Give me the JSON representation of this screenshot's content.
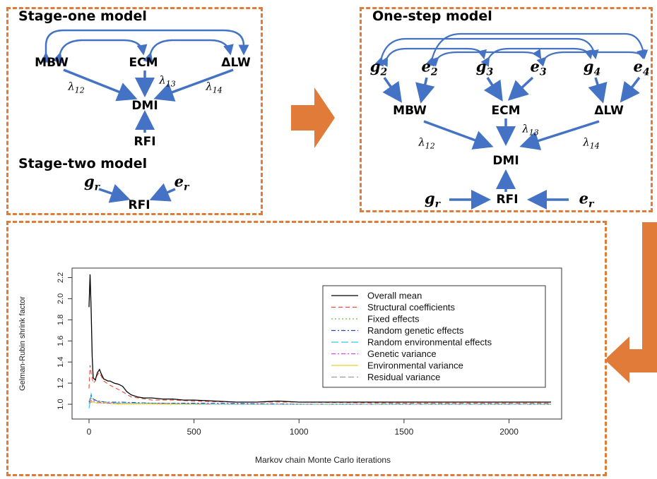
{
  "stage_one": {
    "title": "Stage-one model",
    "nodes": {
      "mbw": "MBW",
      "ecm": "ECM",
      "dlw": "ΔLW",
      "dmi": "DMI",
      "rfi": "RFI"
    },
    "lambdas": {
      "l12": "12",
      "l13": "13",
      "l14": "14"
    }
  },
  "stage_two": {
    "title": "Stage-two model",
    "g_sub": "r",
    "e_sub": "r",
    "rfi": "RFI"
  },
  "one_step": {
    "title": "One-step model",
    "vars": {
      "g2": "2",
      "e2": "2",
      "g3": "3",
      "e3": "3",
      "g4": "4",
      "e4": "4",
      "gr": "r",
      "er": "r"
    },
    "nodes": {
      "mbw": "MBW",
      "ecm": "ECM",
      "dlw": "ΔLW",
      "dmi": "DMI",
      "rfi": "RFI"
    },
    "lambdas": {
      "l12": "12",
      "l13": "13",
      "l14": "14"
    }
  },
  "colors": {
    "arrow": "#4472c4",
    "panel_border": "#e07b39",
    "big_arrow": "#e07b39"
  },
  "chart_data": {
    "type": "line",
    "xlabel": "Markov chain Monte Carlo iterations",
    "ylabel": "Gelman-Rubin shrink factor",
    "xlim": [
      0,
      2200
    ],
    "ylim": [
      0.9,
      2.25
    ],
    "xticks": [
      0,
      500,
      1000,
      1500,
      2000
    ],
    "yticks": [
      1.0,
      1.2,
      1.4,
      1.6,
      1.8,
      2.0,
      2.2
    ],
    "legend_position": "top-right",
    "series": [
      {
        "name": "Overall mean",
        "color": "#000000",
        "dash": "",
        "x": [
          0,
          5,
          10,
          15,
          20,
          30,
          40,
          50,
          60,
          70,
          80,
          90,
          100,
          120,
          140,
          160,
          180,
          200,
          230,
          260,
          300,
          350,
          400,
          450,
          500,
          600,
          700,
          800,
          900,
          1000,
          1200,
          1500,
          1800,
          2000,
          2200
        ],
        "y": [
          1.92,
          2.23,
          1.9,
          1.45,
          1.25,
          1.23,
          1.3,
          1.33,
          1.28,
          1.24,
          1.23,
          1.22,
          1.22,
          1.2,
          1.19,
          1.17,
          1.12,
          1.09,
          1.07,
          1.06,
          1.06,
          1.05,
          1.05,
          1.04,
          1.04,
          1.03,
          1.02,
          1.02,
          1.03,
          1.02,
          1.02,
          1.02,
          1.02,
          1.02,
          1.02
        ]
      },
      {
        "name": "Structural coefficients",
        "color": "#e8473a",
        "dash": "6,4",
        "x": [
          0,
          5,
          10,
          20,
          30,
          40,
          50,
          70,
          100,
          150,
          200,
          300,
          400,
          500,
          700,
          1000,
          1500,
          2200
        ],
        "y": [
          1.15,
          1.37,
          1.3,
          1.2,
          1.22,
          1.28,
          1.3,
          1.22,
          1.18,
          1.13,
          1.07,
          1.04,
          1.04,
          1.03,
          1.02,
          1.02,
          1.01,
          1.01
        ]
      },
      {
        "name": "Fixed effects",
        "color": "#6cbf45",
        "dash": "2,3",
        "x": [
          0,
          10,
          20,
          40,
          80,
          150,
          300,
          600,
          1000,
          2200
        ],
        "y": [
          1.03,
          1.06,
          1.04,
          1.03,
          1.02,
          1.01,
          1.01,
          1.0,
          1.0,
          1.0
        ]
      },
      {
        "name": "Random genetic effects",
        "color": "#2f3fbf",
        "dash": "6,3,2,3",
        "x": [
          0,
          10,
          20,
          40,
          80,
          150,
          300,
          600,
          1000,
          2200
        ],
        "y": [
          1.02,
          1.08,
          1.05,
          1.03,
          1.02,
          1.02,
          1.01,
          1.01,
          1.0,
          1.0
        ]
      },
      {
        "name": "Random environmental effects",
        "color": "#37c8e0",
        "dash": "10,4",
        "x": [
          0,
          10,
          20,
          40,
          80,
          150,
          300,
          600,
          1000,
          2200
        ],
        "y": [
          0.96,
          1.1,
          1.05,
          1.03,
          1.02,
          1.01,
          1.01,
          1.0,
          1.0,
          1.0
        ]
      },
      {
        "name": "Genetic variance",
        "color": "#e040e0",
        "dash": "6,3,2,3",
        "x": [
          0,
          10,
          20,
          40,
          80,
          150,
          300,
          600,
          1000,
          2200
        ],
        "y": [
          1.01,
          1.04,
          1.03,
          1.02,
          1.01,
          1.01,
          1.01,
          1.0,
          1.0,
          1.0
        ]
      },
      {
        "name": "Environmental variance",
        "color": "#e8d22a",
        "dash": "",
        "x": [
          0,
          10,
          20,
          40,
          80,
          150,
          300,
          600,
          1000,
          2200
        ],
        "y": [
          1.0,
          1.03,
          1.02,
          1.01,
          1.01,
          1.0,
          1.0,
          1.0,
          1.0,
          1.0
        ]
      },
      {
        "name": "Residual variance",
        "color": "#9a9a9a",
        "dash": "8,4",
        "x": [
          0,
          10,
          20,
          40,
          80,
          150,
          300,
          600,
          1000,
          2200
        ],
        "y": [
          1.0,
          1.02,
          1.02,
          1.01,
          1.01,
          1.0,
          1.0,
          1.0,
          1.0,
          1.0
        ]
      }
    ]
  }
}
